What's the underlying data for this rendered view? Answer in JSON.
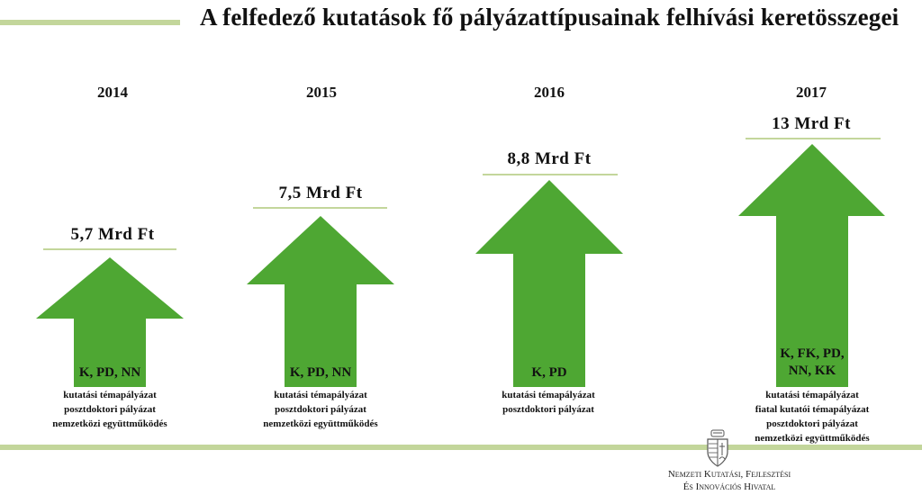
{
  "header": {
    "title": "A felfedező kutatások fő pályázattípusainak felhívási keretösszegei"
  },
  "columns": [
    {
      "year": "2014",
      "amount": "5,7 Mrd Ft",
      "codes": [
        "K, PD, NN"
      ],
      "descriptions": [
        "kutatási témapályázat",
        "posztdoktori pályázat",
        "nemzetközi együttműködés"
      ]
    },
    {
      "year": "2015",
      "amount": "7,5 Mrd Ft",
      "codes": [
        "K, PD, NN"
      ],
      "descriptions": [
        "kutatási témapályázat",
        "posztdoktori pályázat",
        "nemzetközi együttműködés"
      ]
    },
    {
      "year": "2016",
      "amount": "8,8 Mrd Ft",
      "codes": [
        "K, PD"
      ],
      "descriptions": [
        "kutatási témapályázat",
        "posztdoktori pályázat"
      ]
    },
    {
      "year": "2017",
      "amount": "13 Mrd Ft",
      "codes": [
        "K, FK, PD,",
        "NN, KK"
      ],
      "descriptions": [
        "kutatási témapályázat",
        "fiatal kutatói témapályázat",
        "posztdoktori pályázat",
        "nemzetközi együttműködés"
      ]
    }
  ],
  "footer": {
    "org_line1": "Nemzeti Kutatási, Fejlesztési",
    "org_line2": "És Innovációs Hivatal"
  },
  "colors": {
    "arrow": "#4ea733",
    "accent_line": "#c3d69b"
  }
}
